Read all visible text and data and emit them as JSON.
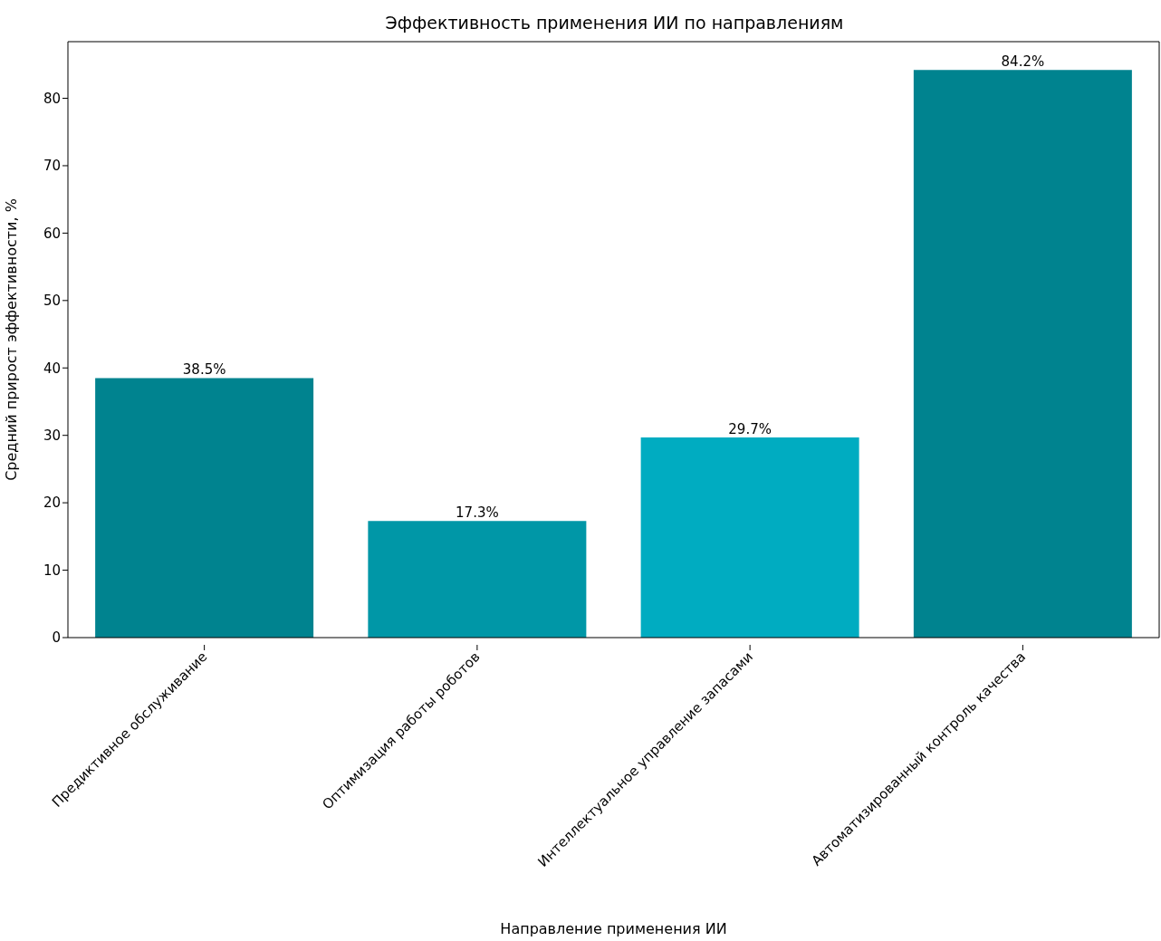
{
  "chart_data": {
    "type": "bar",
    "title": "Эффективность применения ИИ по направлениям",
    "xlabel": "Направление применения ИИ",
    "ylabel": "Средний прирост эффективности, %",
    "categories": [
      "Предиктивное обслуживание",
      "Оптимизация работы роботов",
      "Интеллектуальное управление запасами",
      "Автоматизированный контроль качества"
    ],
    "values": [
      38.5,
      17.3,
      29.7,
      84.2
    ],
    "colors": [
      "#00838f",
      "#0097a7",
      "#00acc1",
      "#00838f"
    ],
    "value_labels": [
      "38.5%",
      "17.3%",
      "29.7%",
      "84.2%"
    ],
    "ylim": [
      0,
      88.4
    ],
    "yticks": [
      0,
      10,
      20,
      30,
      40,
      50,
      60,
      70,
      80
    ],
    "grid": false,
    "legend": false
  }
}
